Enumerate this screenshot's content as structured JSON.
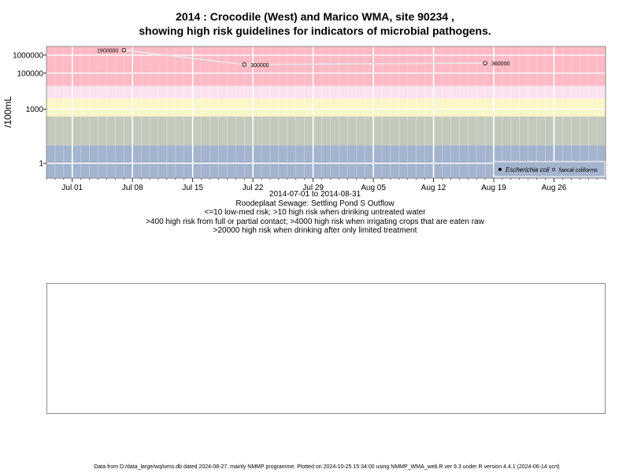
{
  "chart_data": {
    "type": "scatter",
    "title": "2014 : Crocodile (West) and Marico WMA, site 90234 ,",
    "subtitle": "showing high risk guidelines for indicators of microbial pathogens.",
    "ylabel": "/100mL",
    "yscale": "log",
    "date_range_label": "2014-07-01 to 2014-08-31",
    "site_label": "Roodeplaat Sewage: Settling Pond S Outflow",
    "guidelines": [
      "<=10 low-med risk; >10 high risk when drinking untreated water",
      ">400 high risk from full or partial contact; >4000 high risk when irrigating crops that are eaten raw",
      ">20000 high risk when drinking after only limited treatment"
    ],
    "x_ticks": [
      "Jul 01",
      "Jul 08",
      "Jul 15",
      "Jul 22",
      "Jul 29",
      "Aug 05",
      "Aug 12",
      "Aug 19",
      "Aug 26"
    ],
    "x_tick_dates": [
      "2014-07-01",
      "2014-07-08",
      "2014-07-15",
      "2014-07-22",
      "2014-07-29",
      "2014-08-05",
      "2014-08-12",
      "2014-08-19",
      "2014-08-26"
    ],
    "xlim": [
      "2014-06-28",
      "2014-09-01"
    ],
    "y_ticks": [
      {
        "value": 1,
        "label": "1"
      },
      {
        "value": 1000,
        "label": "1000"
      },
      {
        "value": 100000,
        "label": "100000"
      },
      {
        "value": 1000000,
        "label": "1000000"
      }
    ],
    "ylim": [
      0.15,
      3000000
    ],
    "risk_bands": [
      {
        "from": 0.15,
        "to": 10,
        "color": "#a4b4ce"
      },
      {
        "from": 10,
        "to": 400,
        "color": "#c2cbbb"
      },
      {
        "from": 400,
        "to": 4000,
        "color": "#fbf6c6"
      },
      {
        "from": 4000,
        "to": 20000,
        "color": "#fbe2f0"
      },
      {
        "from": 20000,
        "to": 3000000,
        "color": "#ffbac5"
      }
    ],
    "series": [
      {
        "name": "faecal coliforms",
        "marker": "open-circle",
        "color": "#000000",
        "line_color": "#e8e8e8",
        "points": [
          {
            "date": "2014-07-07",
            "value": 1900000,
            "label": "1900000"
          },
          {
            "date": "2014-07-21",
            "value": 300000,
            "label": "300000"
          },
          {
            "date": "2014-08-18",
            "value": 360000,
            "label": "360000"
          }
        ]
      },
      {
        "name": "Escherichia coli",
        "marker": "filled-circle",
        "color": "#000000",
        "points": []
      }
    ],
    "legend": {
      "position": "bottom-right",
      "entries": [
        {
          "label": "Escherichia coli",
          "marker": "filled-circle",
          "italic": true
        },
        {
          "label": "faecal coliforms",
          "marker": "open-circle",
          "italic": false
        }
      ]
    },
    "grid": true
  },
  "footer": "Data from D:/data_large/wq/wms.db dated 2024-08-27, mainly NMMP programme. Plotted on 2024-10-25 15:34:00 using NMMP_WMA_web.R ver 9.3 under R version 4.4.1 (2024-06-14 ucrt)"
}
